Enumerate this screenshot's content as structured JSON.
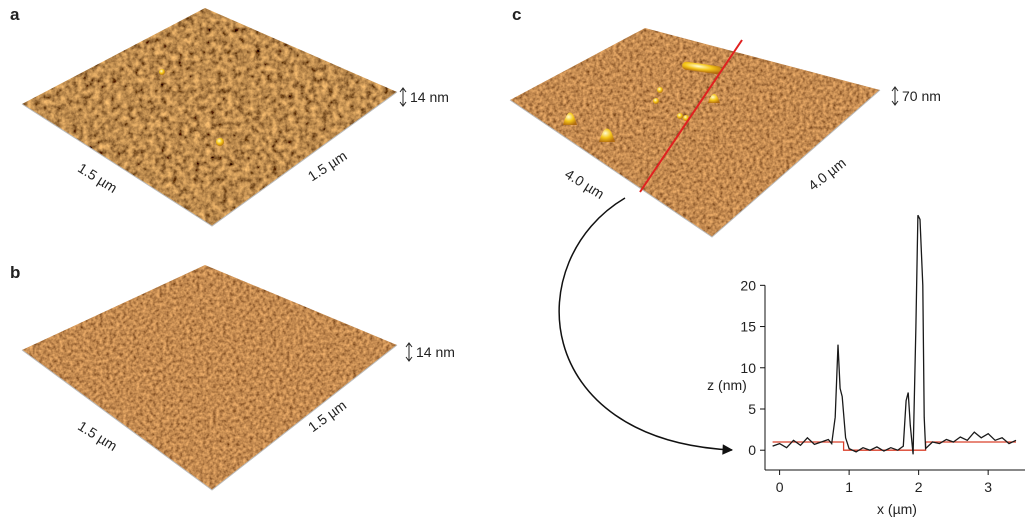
{
  "panels": [
    {
      "label": "a",
      "x_scale": "1.5 µm",
      "y_scale": "1.5 µm",
      "z_scale": "14 nm"
    },
    {
      "label": "b",
      "x_scale": "1.5 µm",
      "y_scale": "1.5 µm",
      "z_scale": "14 nm"
    },
    {
      "label": "c",
      "x_scale": "4.0 µm",
      "y_scale": "4.0 µm",
      "z_scale": "70 nm"
    }
  ],
  "chart_data": {
    "type": "line",
    "x_label": "x (µm)",
    "y_label": "z (nm)",
    "xlim": [
      -0.21,
      3.53
    ],
    "ylim": [
      -2.4,
      29.5
    ],
    "xticks": [
      0,
      1,
      2,
      3
    ],
    "yticks": [
      0,
      5,
      10,
      15,
      20
    ],
    "series": [
      {
        "color": "#1a1a1a",
        "x": [
          -0.1,
          0,
          0.1,
          0.2,
          0.3,
          0.4,
          0.5,
          0.6,
          0.7,
          0.75,
          0.8,
          0.84,
          0.87,
          0.9,
          0.95,
          1.0,
          1.1,
          1.2,
          1.3,
          1.4,
          1.5,
          1.6,
          1.7,
          1.78,
          1.82,
          1.85,
          1.88,
          1.92,
          1.96,
          1.99,
          2.02,
          2.06,
          2.08,
          2.1,
          2.2,
          2.3,
          2.4,
          2.5,
          2.6,
          2.7,
          2.8,
          2.9,
          3.0,
          3.1,
          3.2,
          3.3,
          3.4
        ],
        "values": [
          0.5,
          0.8,
          0.3,
          1.2,
          0.6,
          1.5,
          0.7,
          1.0,
          1.3,
          0.8,
          4,
          12.8,
          7.5,
          6.5,
          1.5,
          0.2,
          -0.2,
          0.3,
          0.0,
          0.4,
          -0.1,
          0.3,
          0.0,
          0.5,
          6,
          7,
          3,
          -0.5,
          15,
          28.5,
          28,
          20,
          4,
          0.2,
          1.0,
          0.8,
          1.3,
          1.0,
          1.6,
          1.2,
          2.2,
          1.5,
          2.0,
          1.2,
          1.5,
          0.8,
          1.2
        ]
      },
      {
        "color": "#d9402b",
        "x": [
          -0.1,
          0.92,
          0.92,
          2.1,
          2.1,
          3.4
        ],
        "values": [
          1,
          1,
          0,
          0,
          1,
          1
        ]
      }
    ]
  }
}
